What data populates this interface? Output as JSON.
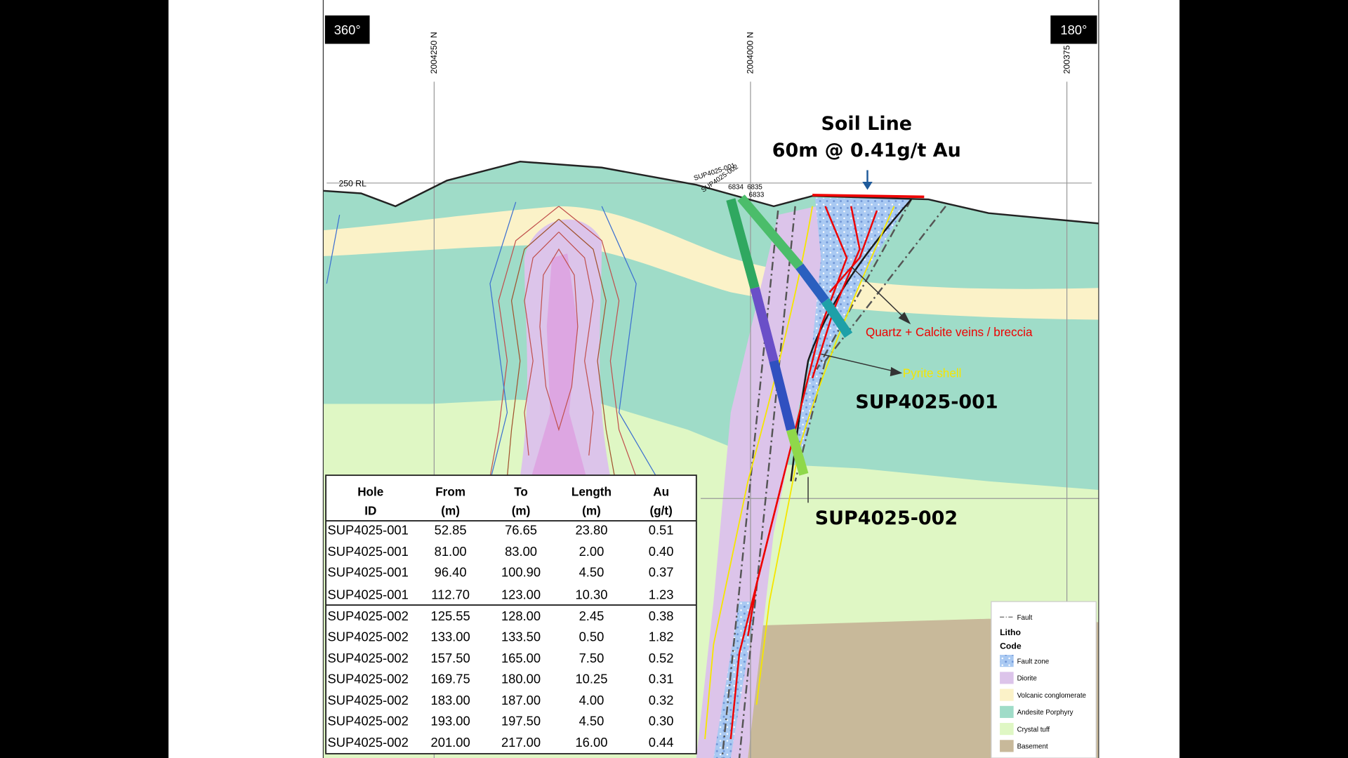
{
  "header": {
    "left_azimuth": "360°",
    "right_azimuth": "180°"
  },
  "northings": [
    "2004250 N",
    "2004000 N",
    "200375"
  ],
  "rl_label": "250 RL",
  "collar_labels": [
    "SUP4025-001",
    "SUP4025-002",
    "6834",
    "6835",
    "6833"
  ],
  "annotations": {
    "soil_line": "Soil Line",
    "soil_intercept": "60m @ 0.41g/t Au",
    "veins": "Quartz + Calcite veins / breccia",
    "pyrite": "Pyrite shell",
    "hole_1": "SUP4025-001",
    "hole_2": "SUP4025-002"
  },
  "table": {
    "header": [
      [
        "Hole",
        "ID"
      ],
      [
        "From",
        "(m)"
      ],
      [
        "To",
        "(m)"
      ],
      [
        "Length",
        "(m)"
      ],
      [
        "Au",
        "(g/t)"
      ]
    ],
    "rows": [
      [
        "SUP4025-001",
        "52.85",
        "76.65",
        "23.80",
        "0.51"
      ],
      [
        "SUP4025-001",
        "81.00",
        "83.00",
        "2.00",
        "0.40"
      ],
      [
        "SUP4025-001",
        "96.40",
        "100.90",
        "4.50",
        "0.37"
      ],
      [
        "SUP4025-001",
        "112.70",
        "123.00",
        "10.30",
        "1.23"
      ],
      [
        "SUP4025-002",
        "125.55",
        "128.00",
        "2.45",
        "0.38"
      ],
      [
        "SUP4025-002",
        "133.00",
        "133.50",
        "0.50",
        "1.82"
      ],
      [
        "SUP4025-002",
        "157.50",
        "165.00",
        "7.50",
        "0.52"
      ],
      [
        "SUP4025-002",
        "169.75",
        "180.00",
        "10.25",
        "0.31"
      ],
      [
        "SUP4025-002",
        "183.00",
        "187.00",
        "4.00",
        "0.32"
      ],
      [
        "SUP4025-002",
        "193.00",
        "197.50",
        "4.50",
        "0.30"
      ],
      [
        "SUP4025-002",
        "201.00",
        "217.00",
        "16.00",
        "0.44"
      ]
    ]
  },
  "legend": {
    "fault": "Fault",
    "title": [
      "Litho",
      "Code"
    ],
    "items": [
      "Fault zone",
      "Diorite",
      "Volcanic conglomerate",
      "Andesite Porphyry",
      "Crystal tuff",
      "Basement"
    ]
  }
}
